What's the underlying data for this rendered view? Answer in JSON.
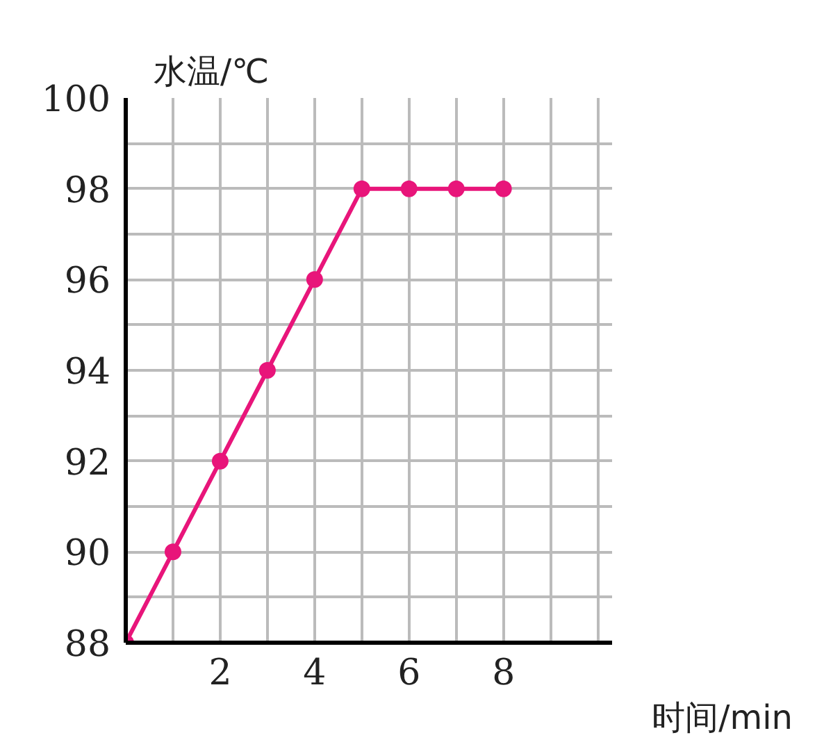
{
  "chart_data": {
    "type": "line",
    "xlabel": "时间/min",
    "ylabel": "水温/℃",
    "x": [
      0,
      1,
      2,
      3,
      4,
      5,
      6,
      7,
      8
    ],
    "series": [
      {
        "color": "#e8157a",
        "values": [
          88,
          90,
          92,
          94,
          96,
          98,
          98,
          98,
          98
        ]
      }
    ],
    "xlim": [
      0,
      10.3
    ],
    "ylim": [
      88,
      100
    ],
    "xticks": [
      {
        "value": 0,
        "label": null
      },
      {
        "value": 1,
        "label": null
      },
      2,
      {
        "value": 3,
        "label": null
      },
      4,
      {
        "value": 5,
        "label": null
      },
      6,
      {
        "value": 7,
        "label": null
      },
      8,
      {
        "value": 9,
        "label": null
      },
      {
        "value": 10,
        "label": null
      }
    ],
    "yticks": [
      88,
      {
        "value": 89,
        "label": null
      },
      90,
      {
        "value": 91,
        "label": null
      },
      92,
      {
        "value": 93,
        "label": null
      },
      94,
      {
        "value": 95,
        "label": null
      },
      96,
      {
        "value": 97,
        "label": null
      },
      98,
      {
        "value": 99,
        "label": null
      },
      100
    ],
    "grid": true,
    "marker": "circle",
    "line_style": "solid"
  }
}
